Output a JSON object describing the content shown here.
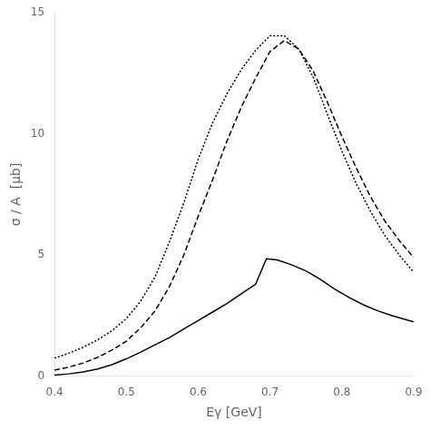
{
  "chart_data": {
    "type": "line",
    "xlabel": "Eγ [GeV]",
    "ylabel": "σ / A  [μb]",
    "xlim": [
      0.4,
      0.9
    ],
    "ylim": [
      0,
      15
    ],
    "xticks": [
      0.4,
      0.5,
      0.6,
      0.7,
      0.8,
      0.9
    ],
    "yticks": [
      0,
      5,
      10,
      15
    ],
    "grid": false,
    "series": [
      {
        "color": "#000000",
        "line_style": "solid",
        "x": [
          0.4,
          0.42,
          0.44,
          0.46,
          0.48,
          0.5,
          0.52,
          0.54,
          0.56,
          0.58,
          0.6,
          0.62,
          0.64,
          0.66,
          0.68,
          0.695,
          0.71,
          0.73,
          0.75,
          0.77,
          0.79,
          0.81,
          0.83,
          0.85,
          0.87,
          0.9
        ],
        "values": [
          0.05,
          0.1,
          0.18,
          0.3,
          0.48,
          0.72,
          1.0,
          1.3,
          1.6,
          1.95,
          2.3,
          2.65,
          3.0,
          3.4,
          3.8,
          4.85,
          4.8,
          4.6,
          4.35,
          4.0,
          3.6,
          3.25,
          2.95,
          2.7,
          2.5,
          2.25
        ]
      },
      {
        "color": "#000000",
        "line_style": "dashed",
        "x": [
          0.4,
          0.42,
          0.44,
          0.46,
          0.48,
          0.5,
          0.52,
          0.54,
          0.56,
          0.58,
          0.6,
          0.62,
          0.64,
          0.66,
          0.68,
          0.7,
          0.72,
          0.74,
          0.76,
          0.78,
          0.8,
          0.82,
          0.84,
          0.86,
          0.88,
          0.9
        ],
        "values": [
          0.25,
          0.38,
          0.55,
          0.78,
          1.08,
          1.45,
          2.0,
          2.7,
          3.7,
          5.0,
          6.6,
          8.1,
          9.7,
          11.1,
          12.3,
          13.4,
          13.85,
          13.5,
          12.6,
          11.3,
          9.9,
          8.6,
          7.4,
          6.4,
          5.6,
          4.9
        ]
      },
      {
        "color": "#000000",
        "line_style": "dotted",
        "x": [
          0.4,
          0.42,
          0.44,
          0.46,
          0.48,
          0.5,
          0.52,
          0.54,
          0.56,
          0.58,
          0.6,
          0.62,
          0.64,
          0.66,
          0.68,
          0.7,
          0.72,
          0.74,
          0.76,
          0.78,
          0.8,
          0.82,
          0.84,
          0.86,
          0.88,
          0.9
        ],
        "values": [
          0.75,
          0.95,
          1.2,
          1.5,
          1.88,
          2.38,
          3.1,
          4.1,
          5.55,
          7.15,
          8.95,
          10.45,
          11.65,
          12.65,
          13.45,
          14.05,
          14.05,
          13.5,
          12.35,
          10.8,
          9.3,
          7.95,
          6.8,
          5.8,
          5.0,
          4.3
        ]
      }
    ]
  }
}
